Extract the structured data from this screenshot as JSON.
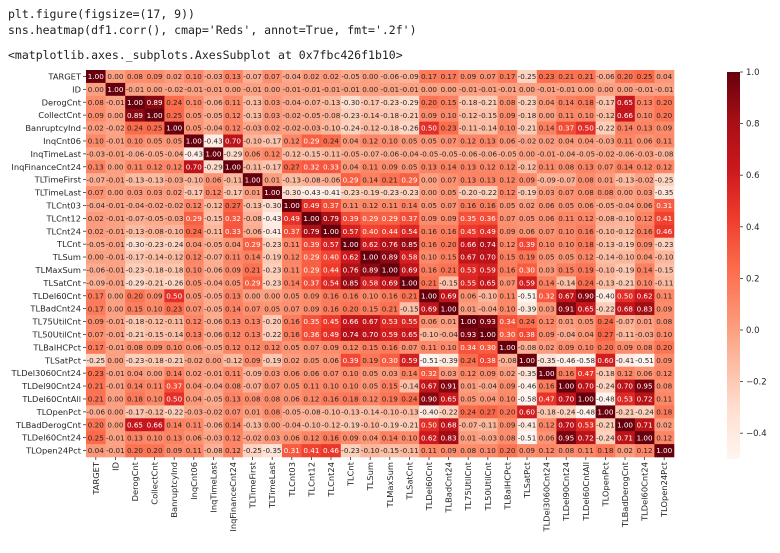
{
  "code": {
    "line1": "plt.figure(figsize=(17, 9))",
    "line2": "sns.heatmap(df1.corr(), cmap='Reds', annot=True, fmt='.2f')"
  },
  "output_text": "<matplotlib.axes._subplots.AxesSubplot at 0x7fbc426f1b10>",
  "chart_data": {
    "type": "heatmap",
    "cmap": "Reds",
    "annot": true,
    "fmt": ".2f",
    "vmin": -0.5,
    "vmax": 1.0,
    "colorbar_ticks": [
      1.0,
      0.8,
      0.6,
      0.4,
      0.2,
      0.0,
      -0.2,
      -0.4
    ],
    "colorbar_tick_labels": [
      "1.0",
      "0.8",
      "0.6",
      "0.4",
      "0.2",
      "0.0",
      "−0.2",
      "−0.4"
    ],
    "labels": [
      "TARGET",
      "ID",
      "DerogCnt",
      "CollectCnt",
      "BanruptcyInd",
      "InqCnt06",
      "InqTimeLast",
      "InqFinanceCnt24",
      "TLTimeFirst",
      "TLTimeLast",
      "TLCnt03",
      "TLCnt12",
      "TLCnt24",
      "TLCnt",
      "TLSum",
      "TLMaxSum",
      "TLSatCnt",
      "TLDel60Cnt",
      "TLBadCnt24",
      "TL75UtilCnt",
      "TL50UtilCnt",
      "TLBalHCPct",
      "TLSatPct",
      "TLDel3060Cnt24",
      "TLDel90Cnt24",
      "TLDel60CntAll",
      "TLOpenPct",
      "TLBadDerogCnt",
      "TLDel60Cnt24",
      "TLOpen24Pct"
    ],
    "rows": [
      [
        1.0,
        0.0,
        0.08,
        0.09,
        0.02,
        0.1,
        -0.03,
        0.13,
        -0.07,
        0.07,
        -0.04,
        0.02,
        0.02,
        -0.05,
        0.0,
        -0.06,
        -0.09,
        0.17,
        0.17,
        0.09,
        0.07,
        0.17,
        -0.25,
        0.23,
        0.21,
        0.21,
        -0.06,
        0.2,
        0.25,
        0.04
      ],
      [
        0.0,
        1.0,
        -0.01,
        0.0,
        -0.02,
        -0.01,
        -0.01,
        0.0,
        -0.01,
        0.0,
        -0.01,
        -0.01,
        -0.01,
        -0.01,
        0.0,
        -0.01,
        -0.01,
        0.0,
        0.0,
        -0.01,
        -0.01,
        -0.01,
        0.0,
        -0.01,
        -0.01,
        0.0,
        0.0,
        0.0,
        -0.01,
        -0.01
      ],
      [
        0.08,
        -0.01,
        1.0,
        0.89,
        0.24,
        0.1,
        -0.06,
        0.11,
        -0.13,
        0.03,
        -0.04,
        -0.07,
        -0.13,
        -0.3,
        -0.17,
        -0.23,
        -0.29,
        0.2,
        0.15,
        -0.18,
        -0.21,
        0.08,
        -0.23,
        0.04,
        0.14,
        0.18,
        -0.17,
        0.65,
        0.13,
        0.2
      ],
      [
        0.09,
        0.0,
        0.89,
        1.0,
        0.25,
        0.05,
        -0.05,
        0.12,
        -0.13,
        0.03,
        -0.02,
        -0.05,
        -0.08,
        -0.23,
        -0.14,
        -0.18,
        -0.21,
        0.09,
        0.1,
        -0.12,
        -0.15,
        0.09,
        -0.18,
        0.0,
        0.11,
        0.1,
        -0.12,
        0.66,
        0.1,
        0.2
      ],
      [
        0.02,
        -0.02,
        0.24,
        0.25,
        1.0,
        0.05,
        -0.04,
        0.12,
        -0.03,
        0.02,
        -0.02,
        -0.03,
        -0.1,
        -0.24,
        -0.12,
        -0.18,
        -0.26,
        0.5,
        0.23,
        -0.11,
        -0.14,
        0.1,
        -0.21,
        0.14,
        0.37,
        0.5,
        -0.22,
        0.14,
        0.13,
        0.09
      ],
      [
        0.1,
        -0.01,
        0.1,
        0.05,
        0.05,
        1.0,
        -0.43,
        0.7,
        -0.1,
        -0.17,
        0.12,
        0.29,
        0.24,
        0.04,
        0.12,
        0.1,
        0.05,
        0.05,
        0.07,
        0.12,
        0.13,
        0.06,
        -0.02,
        0.02,
        0.04,
        0.04,
        -0.03,
        0.11,
        0.06,
        0.11
      ],
      [
        -0.03,
        -0.01,
        -0.06,
        -0.05,
        -0.04,
        -0.43,
        1.0,
        -0.29,
        0.06,
        0.12,
        -0.12,
        -0.15,
        -0.11,
        -0.05,
        -0.07,
        -0.06,
        -0.04,
        -0.05,
        -0.05,
        -0.06,
        -0.06,
        -0.05,
        0.0,
        -0.01,
        -0.04,
        -0.05,
        -0.02,
        -0.06,
        -0.03,
        -0.08
      ],
      [
        0.13,
        0.0,
        0.11,
        0.12,
        0.12,
        0.7,
        -0.29,
        1.0,
        -0.11,
        -0.17,
        0.27,
        0.32,
        0.33,
        0.04,
        0.11,
        0.09,
        0.05,
        0.13,
        0.14,
        0.13,
        0.12,
        0.12,
        -0.12,
        0.11,
        0.08,
        0.13,
        0.07,
        0.14,
        0.12,
        0.12
      ],
      [
        -0.07,
        -0.01,
        -0.13,
        -0.13,
        -0.03,
        -0.1,
        0.06,
        -0.11,
        1.0,
        0.01,
        -0.13,
        -0.08,
        -0.06,
        0.29,
        0.14,
        0.21,
        0.29,
        0.0,
        0.07,
        0.13,
        0.13,
        0.12,
        0.09,
        -0.09,
        -0.07,
        0.08,
        0.01,
        -0.13,
        -0.02,
        -0.25
      ],
      [
        0.07,
        0.0,
        0.03,
        0.03,
        0.02,
        -0.17,
        0.12,
        -0.17,
        0.01,
        1.0,
        -0.3,
        -0.43,
        -0.41,
        -0.23,
        -0.19,
        -0.23,
        -0.23,
        0.0,
        0.05,
        -0.2,
        -0.22,
        0.12,
        -0.19,
        0.03,
        0.07,
        0.08,
        0.08,
        0.0,
        0.03,
        -0.35
      ],
      [
        -0.04,
        -0.01,
        -0.04,
        -0.02,
        -0.02,
        0.12,
        -0.12,
        0.27,
        -0.13,
        -0.3,
        1.0,
        0.49,
        0.37,
        0.11,
        0.12,
        0.11,
        0.14,
        0.05,
        0.07,
        0.16,
        0.16,
        0.05,
        0.02,
        0.06,
        0.05,
        0.06,
        -0.05,
        -0.04,
        0.06,
        0.31
      ],
      [
        0.02,
        -0.01,
        -0.07,
        -0.05,
        -0.03,
        0.29,
        -0.15,
        0.32,
        -0.08,
        -0.43,
        0.49,
        1.0,
        0.79,
        0.39,
        0.29,
        0.29,
        0.37,
        0.09,
        0.09,
        0.35,
        0.36,
        0.07,
        0.05,
        0.06,
        0.11,
        0.12,
        -0.08,
        -0.1,
        0.12,
        0.41
      ],
      [
        0.02,
        -0.01,
        -0.13,
        -0.08,
        -0.1,
        0.24,
        -0.11,
        0.33,
        -0.06,
        -0.41,
        0.37,
        0.79,
        1.0,
        0.57,
        0.4,
        0.44,
        0.54,
        0.16,
        0.16,
        0.45,
        0.49,
        0.09,
        0.06,
        0.07,
        0.1,
        0.16,
        -0.1,
        -0.12,
        0.16,
        0.46
      ],
      [
        -0.05,
        -0.01,
        -0.3,
        -0.23,
        -0.24,
        0.04,
        -0.05,
        0.04,
        0.29,
        -0.23,
        0.11,
        0.39,
        0.57,
        1.0,
        0.62,
        0.76,
        0.85,
        0.16,
        0.2,
        0.66,
        0.74,
        0.12,
        0.39,
        0.1,
        0.1,
        0.18,
        -0.13,
        -0.19,
        0.09,
        -0.23
      ],
      [
        0.0,
        -0.01,
        -0.17,
        -0.14,
        -0.12,
        0.12,
        -0.07,
        0.11,
        0.14,
        -0.19,
        0.12,
        0.29,
        0.4,
        0.62,
        1.0,
        0.89,
        0.58,
        0.1,
        0.15,
        0.67,
        0.7,
        0.15,
        0.19,
        0.05,
        0.05,
        0.12,
        -0.14,
        -0.1,
        0.04,
        -0.1
      ],
      [
        -0.06,
        -0.01,
        -0.23,
        -0.18,
        -0.18,
        0.1,
        -0.06,
        0.09,
        0.21,
        -0.23,
        0.11,
        0.29,
        0.44,
        0.76,
        0.89,
        1.0,
        0.69,
        0.16,
        0.21,
        0.53,
        0.59,
        0.16,
        0.3,
        0.03,
        0.15,
        0.19,
        -0.1,
        -0.19,
        0.14,
        -0.15
      ],
      [
        -0.09,
        -0.01,
        -0.29,
        -0.21,
        -0.26,
        0.05,
        -0.04,
        0.05,
        0.29,
        -0.23,
        0.14,
        0.37,
        0.54,
        0.85,
        0.58,
        0.69,
        1.0,
        0.21,
        -0.15,
        0.55,
        0.65,
        0.07,
        0.59,
        0.14,
        -0.14,
        0.24,
        -0.13,
        -0.21,
        0.1,
        -0.11
      ],
      [
        0.17,
        0.0,
        0.2,
        0.09,
        0.5,
        0.05,
        -0.05,
        0.13,
        0.0,
        0.0,
        0.05,
        0.09,
        0.16,
        0.16,
        0.1,
        0.16,
        0.21,
        1.0,
        0.69,
        0.06,
        -0.1,
        0.11,
        -0.51,
        0.32,
        0.67,
        0.9,
        -0.4,
        0.5,
        0.62,
        0.11
      ],
      [
        0.17,
        0.0,
        0.15,
        0.1,
        0.23,
        0.07,
        -0.05,
        0.14,
        0.07,
        0.05,
        0.07,
        0.09,
        0.16,
        0.2,
        0.15,
        0.21,
        -0.15,
        0.69,
        1.0,
        0.01,
        -0.04,
        0.1,
        -0.39,
        0.03,
        0.91,
        0.65,
        -0.22,
        0.68,
        0.83,
        0.09
      ],
      [
        0.09,
        -0.01,
        -0.18,
        -0.12,
        -0.11,
        0.12,
        -0.06,
        0.13,
        0.13,
        -0.2,
        0.16,
        0.35,
        0.45,
        0.66,
        0.67,
        0.53,
        0.55,
        0.06,
        0.01,
        1.0,
        0.93,
        0.34,
        0.24,
        0.12,
        0.01,
        0.05,
        0.24,
        -0.07,
        0.01,
        0.08
      ],
      [
        0.07,
        -0.01,
        -0.21,
        -0.15,
        -0.14,
        0.13,
        -0.06,
        0.12,
        0.13,
        -0.22,
        0.16,
        0.36,
        0.49,
        0.74,
        0.7,
        0.59,
        0.65,
        -0.1,
        -0.04,
        0.93,
        1.0,
        0.3,
        0.38,
        0.09,
        -0.04,
        0.04,
        0.27,
        -0.11,
        -0.03,
        0.1
      ],
      [
        0.17,
        -0.01,
        0.08,
        0.09,
        0.1,
        0.06,
        -0.05,
        0.12,
        0.12,
        0.12,
        0.05,
        0.07,
        0.09,
        0.12,
        0.15,
        0.16,
        0.07,
        0.11,
        0.1,
        0.34,
        0.3,
        1.0,
        -0.08,
        0.02,
        0.09,
        0.1,
        0.2,
        0.09,
        0.08,
        0.2
      ],
      [
        -0.25,
        0.0,
        -0.23,
        -0.18,
        -0.21,
        -0.02,
        0.0,
        -0.12,
        0.09,
        -0.19,
        0.02,
        0.05,
        0.06,
        0.39,
        0.19,
        0.3,
        0.59,
        -0.51,
        -0.39,
        0.24,
        0.38,
        -0.08,
        1.0,
        -0.35,
        -0.46,
        -0.58,
        0.6,
        -0.41,
        -0.51,
        0.09
      ],
      [
        0.23,
        -0.01,
        0.04,
        0.0,
        0.14,
        0.02,
        -0.01,
        0.11,
        -0.09,
        0.03,
        0.06,
        0.06,
        0.07,
        0.1,
        0.05,
        0.03,
        0.14,
        0.32,
        0.03,
        0.12,
        0.09,
        0.02,
        -0.35,
        1.0,
        0.16,
        0.47,
        -0.18,
        0.12,
        0.06,
        0.12
      ],
      [
        0.21,
        -0.01,
        0.14,
        0.11,
        0.37,
        0.04,
        -0.04,
        0.08,
        -0.07,
        0.07,
        0.05,
        0.11,
        0.1,
        0.1,
        0.05,
        0.15,
        -0.14,
        0.67,
        0.91,
        0.01,
        -0.04,
        0.09,
        -0.46,
        0.16,
        1.0,
        0.7,
        -0.24,
        0.7,
        0.95,
        0.08
      ],
      [
        0.21,
        0.0,
        0.18,
        0.1,
        0.5,
        0.04,
        -0.05,
        0.13,
        0.08,
        0.08,
        0.06,
        0.12,
        0.16,
        0.18,
        0.12,
        0.19,
        0.24,
        0.9,
        0.65,
        0.05,
        0.04,
        0.1,
        -0.58,
        0.47,
        0.7,
        1.0,
        -0.48,
        0.53,
        0.72,
        0.11
      ],
      [
        -0.06,
        0.0,
        -0.17,
        -0.12,
        -0.22,
        -0.03,
        -0.02,
        0.07,
        0.01,
        0.08,
        -0.05,
        -0.08,
        -0.1,
        -0.13,
        -0.14,
        -0.1,
        -0.13,
        -0.4,
        -0.22,
        0.24,
        0.27,
        0.2,
        0.6,
        -0.18,
        -0.24,
        -0.48,
        1.0,
        -0.21,
        -0.24,
        0.18
      ],
      [
        0.2,
        0.0,
        0.65,
        0.66,
        0.14,
        0.11,
        -0.06,
        0.14,
        -0.13,
        0.0,
        -0.04,
        -0.1,
        -0.12,
        -0.19,
        -0.1,
        -0.19,
        -0.21,
        0.5,
        0.68,
        -0.07,
        -0.11,
        0.09,
        -0.41,
        0.12,
        0.7,
        0.53,
        -0.21,
        1.0,
        0.71,
        0.02
      ],
      [
        0.25,
        -0.01,
        0.13,
        0.1,
        0.13,
        0.06,
        -0.03,
        0.12,
        -0.02,
        0.03,
        0.06,
        0.12,
        0.16,
        0.09,
        0.04,
        0.14,
        0.1,
        0.62,
        0.83,
        0.01,
        -0.03,
        0.08,
        -0.51,
        0.06,
        0.95,
        0.72,
        -0.24,
        0.71,
        1.0,
        0.12
      ],
      [
        0.04,
        -0.01,
        0.2,
        0.2,
        0.09,
        0.11,
        -0.08,
        0.12,
        -0.25,
        -0.35,
        0.31,
        0.41,
        0.46,
        -0.23,
        -0.1,
        -0.15,
        -0.11,
        0.11,
        0.09,
        0.08,
        0.1,
        0.2,
        0.09,
        0.12,
        0.08,
        0.11,
        0.18,
        0.02,
        0.12,
        1.0
      ]
    ]
  }
}
